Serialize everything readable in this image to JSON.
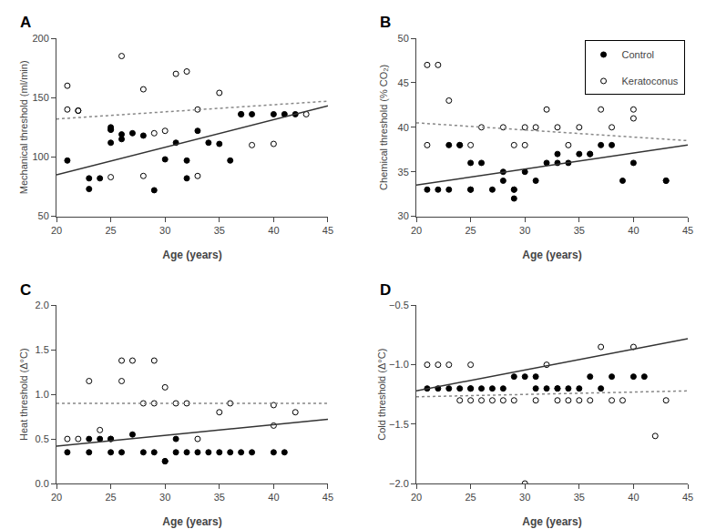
{
  "chart_data": [
    {
      "type": "scatter",
      "title": "A",
      "xlabel": "Age (years)",
      "ylabel": "Mechanical threshold (ml/min)",
      "xlim": [
        20,
        45
      ],
      "xticks": [
        20,
        25,
        30,
        35,
        40,
        45
      ],
      "ylim": [
        50,
        200
      ],
      "yticks": [
        50,
        100,
        150,
        200
      ],
      "grid": false,
      "series": [
        {
          "name": "Control",
          "type": "scatter",
          "marker": "circle",
          "color": "#000000",
          "x": [
            21,
            23,
            23,
            24,
            25,
            25,
            25,
            26,
            26,
            27,
            28,
            29,
            30,
            31,
            32,
            32,
            33,
            34,
            35,
            36,
            37,
            38,
            40,
            41,
            42
          ],
          "values": [
            97,
            73,
            82,
            82,
            112,
            123,
            125,
            115,
            119,
            120,
            118,
            72,
            98,
            112,
            97,
            82,
            122,
            112,
            111,
            97,
            136,
            136,
            136,
            136,
            136
          ]
        },
        {
          "name": "Keratoconus",
          "type": "scatter",
          "marker": "circle-open",
          "color": "#000000",
          "x": [
            21,
            21,
            22,
            22,
            25,
            25,
            26,
            28,
            28,
            29,
            30,
            31,
            32,
            33,
            33,
            35,
            37,
            38,
            40,
            43
          ],
          "values": [
            160,
            140,
            139,
            139,
            123,
            83,
            185,
            157,
            84,
            120,
            122,
            170,
            172,
            140,
            84,
            154,
            136,
            110,
            111,
            136
          ]
        },
        {
          "name": "Control",
          "type": "line",
          "line_style": "solid",
          "color": "#333333",
          "x": [
            20,
            45
          ],
          "values": [
            85,
            143
          ]
        },
        {
          "name": "Keratoconus",
          "type": "line",
          "line_style": "dotted",
          "color": "#888888",
          "x": [
            20,
            45
          ],
          "values": [
            132,
            147
          ]
        }
      ]
    },
    {
      "type": "scatter",
      "title": "B",
      "xlabel": "Age (years)",
      "ylabel": "Chemical threshold (% CO₂)",
      "xlim": [
        20,
        45
      ],
      "xticks": [
        20,
        25,
        30,
        35,
        40,
        45
      ],
      "ylim": [
        30,
        50
      ],
      "yticks": [
        30,
        35,
        40,
        45,
        50
      ],
      "grid": false,
      "legend": "upper right",
      "series": [
        {
          "name": "Control",
          "type": "scatter",
          "marker": "circle",
          "color": "#000000",
          "x": [
            21,
            22,
            23,
            23,
            24,
            25,
            25,
            25,
            26,
            27,
            28,
            28,
            29,
            29,
            30,
            31,
            32,
            33,
            33,
            34,
            35,
            36,
            37,
            38,
            39,
            40,
            43
          ],
          "values": [
            33,
            33,
            33,
            38,
            38,
            36,
            33,
            33,
            36,
            33,
            35,
            34,
            33,
            32,
            35,
            34,
            36,
            37,
            36,
            36,
            37,
            37,
            38,
            38,
            34,
            36,
            34
          ]
        },
        {
          "name": "Keratoconus",
          "type": "scatter",
          "marker": "circle-open",
          "color": "#000000",
          "x": [
            21,
            21,
            22,
            23,
            24,
            25,
            26,
            28,
            29,
            29,
            30,
            30,
            31,
            32,
            33,
            34,
            35,
            36,
            37,
            38,
            40,
            40,
            43
          ],
          "values": [
            47,
            38,
            47,
            43,
            38,
            38,
            40,
            40,
            33,
            38,
            40,
            38,
            40,
            42,
            40,
            38,
            40,
            37,
            42,
            40,
            41,
            42,
            34
          ]
        },
        {
          "name": "Control",
          "type": "line",
          "line_style": "solid",
          "color": "#333333",
          "x": [
            20,
            45
          ],
          "values": [
            33.5,
            38.0
          ]
        },
        {
          "name": "Keratoconus",
          "type": "line",
          "line_style": "dotted",
          "color": "#888888",
          "x": [
            20,
            45
          ],
          "values": [
            40.5,
            38.5
          ]
        }
      ]
    },
    {
      "type": "scatter",
      "title": "C",
      "xlabel": "Age (years)",
      "ylabel": "Heat threshold (Δ°C)",
      "xlim": [
        20,
        45
      ],
      "xticks": [
        20,
        25,
        30,
        35,
        40,
        45
      ],
      "ylim": [
        0.0,
        2.0
      ],
      "yticks": [
        {
          "value": 0.0,
          "label": "0.0"
        },
        0.5,
        {
          "value": 1.0,
          "label": "1.0"
        },
        1.5,
        {
          "value": 2.0,
          "label": "2.0"
        }
      ],
      "grid": false,
      "series": [
        {
          "name": "Control",
          "type": "scatter",
          "marker": "circle",
          "color": "#000000",
          "x": [
            21,
            23,
            23,
            24,
            25,
            25,
            26,
            27,
            28,
            29,
            30,
            30,
            31,
            31,
            32,
            33,
            34,
            35,
            36,
            37,
            38,
            40,
            41
          ],
          "values": [
            0.35,
            0.35,
            0.5,
            0.5,
            0.35,
            0.5,
            0.35,
            0.55,
            0.35,
            0.35,
            0.25,
            0.25,
            0.5,
            0.35,
            0.35,
            0.35,
            0.35,
            0.35,
            0.35,
            0.35,
            0.35,
            0.35,
            0.35
          ]
        },
        {
          "name": "Keratoconus",
          "type": "scatter",
          "marker": "circle-open",
          "color": "#000000",
          "x": [
            21,
            22,
            23,
            24,
            25,
            26,
            26,
            27,
            28,
            29,
            29,
            30,
            31,
            32,
            33,
            35,
            36,
            40,
            40,
            42
          ],
          "values": [
            0.5,
            0.5,
            1.15,
            0.6,
            0.5,
            1.15,
            1.38,
            1.38,
            0.9,
            0.9,
            1.38,
            1.08,
            0.9,
            0.9,
            0.5,
            0.8,
            0.9,
            0.88,
            0.65,
            0.8
          ]
        },
        {
          "name": "Control",
          "type": "line",
          "line_style": "solid",
          "color": "#333333",
          "x": [
            20,
            45
          ],
          "values": [
            0.42,
            0.72
          ]
        },
        {
          "name": "Keratoconus",
          "type": "line",
          "line_style": "dotted",
          "color": "#888888",
          "x": [
            20,
            45
          ],
          "values": [
            0.9,
            0.9
          ]
        }
      ]
    },
    {
      "type": "scatter",
      "title": "D",
      "xlabel": "Age (years)",
      "ylabel": "Cold threshold (Δ°C)",
      "xlim": [
        20,
        45
      ],
      "xticks": [
        20,
        25,
        30,
        35,
        40,
        45
      ],
      "ylim": [
        -2.0,
        -0.5
      ],
      "yticks": [
        {
          "value": -2.0,
          "label": "−2.0"
        },
        {
          "value": -1.5,
          "label": "−1.5"
        },
        {
          "value": -1.0,
          "label": "−1.0"
        },
        {
          "value": -0.5,
          "label": "−0.5"
        }
      ],
      "grid": false,
      "series": [
        {
          "name": "Control",
          "type": "scatter",
          "marker": "circle",
          "color": "#000000",
          "x": [
            21,
            22,
            23,
            24,
            25,
            25,
            26,
            27,
            28,
            29,
            30,
            31,
            31,
            32,
            33,
            33,
            34,
            35,
            36,
            37,
            38,
            40,
            41
          ],
          "values": [
            -1.2,
            -1.2,
            -1.2,
            -1.2,
            -1.2,
            -1.2,
            -1.2,
            -1.2,
            -1.2,
            -1.1,
            -1.1,
            -1.2,
            -1.1,
            -1.2,
            -1.2,
            -1.2,
            -1.2,
            -1.2,
            -1.1,
            -1.2,
            -1.1,
            -1.1,
            -1.1
          ]
        },
        {
          "name": "Keratoconus",
          "type": "scatter",
          "marker": "circle-open",
          "color": "#000000",
          "x": [
            21,
            22,
            23,
            24,
            25,
            25,
            26,
            27,
            28,
            29,
            30,
            31,
            32,
            33,
            34,
            35,
            36,
            37,
            38,
            39,
            40,
            42,
            43
          ],
          "values": [
            -1.0,
            -1.0,
            -1.0,
            -1.3,
            -1.3,
            -1.0,
            -1.3,
            -1.3,
            -1.3,
            -1.3,
            -2.0,
            -1.3,
            -1.0,
            -1.3,
            -1.3,
            -1.3,
            -1.3,
            -0.85,
            -1.3,
            -1.3,
            -0.85,
            -1.6,
            -1.3
          ]
        },
        {
          "name": "Control",
          "type": "line",
          "line_style": "solid",
          "color": "#333333",
          "x": [
            20,
            45
          ],
          "values": [
            -1.22,
            -0.78
          ]
        },
        {
          "name": "Keratoconus",
          "type": "line",
          "line_style": "dotted",
          "color": "#888888",
          "x": [
            20,
            45
          ],
          "values": [
            -1.27,
            -1.22
          ]
        }
      ]
    }
  ]
}
